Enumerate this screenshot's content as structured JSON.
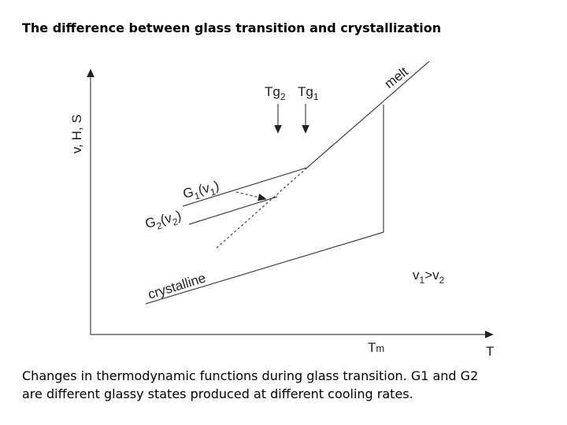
{
  "title": "The difference between glass transition and crystallization",
  "diagram": {
    "y_axis_label": "v, H, S",
    "x_axis_label": "T",
    "tm_label": {
      "main": "T",
      "sub": "m"
    },
    "melt_label": "melt",
    "tg2_label": {
      "main": "Tg",
      "sub": "2"
    },
    "tg1_label": {
      "main": "Tg",
      "sub": "1"
    },
    "g1_label": {
      "parts": [
        "G",
        "1",
        "(v",
        "1",
        ")"
      ]
    },
    "g2_label": {
      "parts": [
        "G",
        "2",
        "(v",
        "2",
        ")"
      ]
    },
    "crystalline_label": "crystalline",
    "relation_label": {
      "parts": [
        "v",
        "1",
        ">v",
        "2"
      ]
    }
  },
  "caption": {
    "lines": [
      "Changes in thermodynamic functions during glass transition. G1 and G2",
      "are different glassy states produced at different cooling rates."
    ]
  }
}
